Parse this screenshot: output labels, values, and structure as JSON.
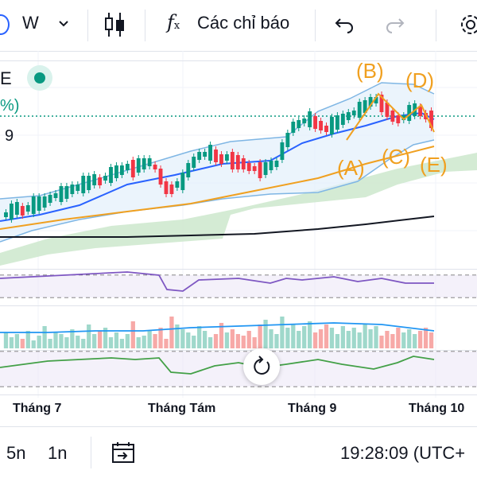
{
  "toolbar": {
    "interval": "W",
    "indicators_label": "Các chỉ báo"
  },
  "legend": {
    "symbol_fragment": "E",
    "change_fragment": "%)",
    "price_fragment": "9"
  },
  "waves": [
    "(A)",
    "(B)",
    "(C)",
    "(D)",
    "(E)"
  ],
  "x_axis": {
    "labels": [
      "Tháng 7",
      "Tháng Tám",
      "Tháng 9",
      "Tháng 10"
    ]
  },
  "bottombar": {
    "ranges": [
      "5n",
      "1n"
    ],
    "clock": "19:28:09 (UTC+"
  },
  "colors": {
    "up": "#089981",
    "down": "#f23645",
    "ma_fast": "#2962ff",
    "ma_mid": "#f0a020",
    "ma_slow": "#131722",
    "band": "#5b9bd5",
    "cloud": "#b7dfb9",
    "rsi": "#7e57c2",
    "osc": "#4caf50"
  }
}
